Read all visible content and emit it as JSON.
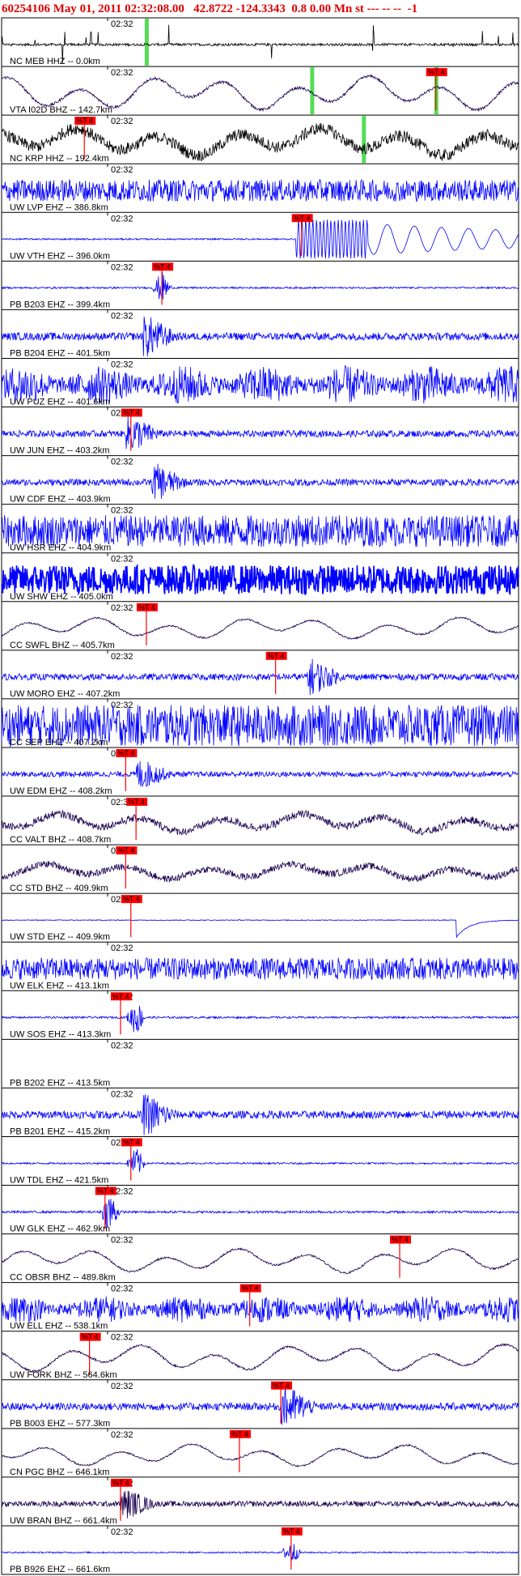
{
  "header": {
    "title": "60254106 May 01, 2011 02:32:08.00   42.8722 -124.3343  0.8 0.00 Mn st --- -- --  -1"
  },
  "time_tick": "02:32",
  "pick_label": "%T 4",
  "colors": {
    "header": "#e00000",
    "blue_trace": "#0000ff",
    "dark_trace": "#000000",
    "navy_trace": "#1a0050",
    "pick": "#ff0000",
    "green_marker": "#55dd55"
  },
  "traces": [
    {
      "label": "NC MEB HHZ -- 0.0km",
      "color": "dark",
      "style": "spiky",
      "amp": 0.35,
      "green": [
        0.28
      ]
    },
    {
      "label": "VTA I02D BHZ -- 142.7km",
      "color": "navy",
      "style": "wave",
      "amp": 0.7,
      "picks": [
        0.84
      ],
      "green": [
        0.6,
        0.84
      ]
    },
    {
      "label": "NC KRP HHZ -- 192.4km",
      "color": "dark",
      "style": "wave-noisy",
      "amp": 0.7,
      "picks": [
        0.16
      ],
      "green": [
        0.7
      ]
    },
    {
      "label": "UW LVP EHZ -- 386.8km",
      "color": "blue",
      "style": "noise",
      "amp": 0.45
    },
    {
      "label": "UW VTH EHZ -- 396.0km",
      "color": "blue",
      "style": "vth",
      "amp": 0.8,
      "picks": [
        0.58
      ]
    },
    {
      "label": "PB B203 EHZ -- 399.4km",
      "color": "blue",
      "style": "quiet-burst",
      "amp": 0.3,
      "picks": [
        0.31
      ]
    },
    {
      "label": "PB B204 EHZ -- 401.5km",
      "color": "blue",
      "style": "noise-burst",
      "amp": 0.35,
      "burst": 0.28
    },
    {
      "label": "UW PUZ EHZ -- 401.6km",
      "color": "blue",
      "style": "noise-loud",
      "amp": 0.8
    },
    {
      "label": "UW JUN EHZ -- 403.2km",
      "color": "blue",
      "style": "noise-burst",
      "amp": 0.3,
      "picks": [
        0.25
      ],
      "burst": 0.25
    },
    {
      "label": "UW CDF EHZ -- 403.9km",
      "color": "blue",
      "style": "noise-burst",
      "amp": 0.3,
      "burst": 0.3
    },
    {
      "label": "UW HSR EHZ -- 404.9km",
      "color": "blue",
      "style": "noise",
      "amp": 0.65
    },
    {
      "label": "UW SHW EHZ -- 405.0km",
      "color": "blue",
      "style": "block",
      "amp": 0.6
    },
    {
      "label": "CC SWFL BHZ -- 405.7km",
      "color": "navy",
      "style": "wave",
      "amp": 0.45,
      "picks": [
        0.28
      ]
    },
    {
      "label": "UW MORO EHZ -- 407.2km",
      "color": "blue",
      "style": "noise-burst",
      "amp": 0.3,
      "picks": [
        0.53
      ],
      "burst": 0.6
    },
    {
      "label": "CC SEP EHZ -- 407.2km",
      "color": "blue",
      "style": "noise",
      "amp": 0.85
    },
    {
      "label": "UW EDM EHZ -- 408.2km",
      "color": "blue",
      "style": "noise-burst",
      "amp": 0.25,
      "picks": [
        0.24
      ],
      "burst": 0.27
    },
    {
      "label": "CC VALT BHZ -- 408.7km",
      "color": "navy",
      "style": "wave-noisy",
      "amp": 0.45,
      "picks": [
        0.26
      ],
      "burst": 0.27
    },
    {
      "label": "CC STD BHZ -- 409.9km",
      "color": "navy",
      "style": "wave-noisy",
      "amp": 0.4,
      "picks": [
        0.24
      ],
      "burst": 0.27
    },
    {
      "label": "UW STD EHZ -- 409.9km",
      "color": "blue",
      "style": "flat-step",
      "amp": 0.5,
      "picks": [
        0.25
      ]
    },
    {
      "label": "UW ELK EHZ -- 413.1km",
      "color": "blue",
      "style": "noise",
      "amp": 0.45
    },
    {
      "label": "UW SOS EHZ -- 413.3km",
      "color": "blue",
      "style": "quiet-burst",
      "amp": 0.35,
      "picks": [
        0.23
      ],
      "burst": 0.26
    },
    {
      "label": "PB B202 EHZ -- 413.5km",
      "color": "blue",
      "style": "empty",
      "amp": 0
    },
    {
      "label": "PB B201 EHZ -- 415.2km",
      "color": "blue",
      "style": "noise-burst",
      "amp": 0.35,
      "burst": 0.28
    },
    {
      "label": "UW TDL EHZ -- 421.5km",
      "color": "blue",
      "style": "quiet-burst",
      "amp": 0.3,
      "picks": [
        0.25
      ],
      "burst": 0.26
    },
    {
      "label": "UW GLK EHZ -- 462.9km",
      "color": "blue",
      "style": "quiet-burst",
      "amp": 0.4,
      "picks": [
        0.2
      ],
      "burst": 0.21
    },
    {
      "label": "CC OBSR BHZ -- 489.8km",
      "color": "navy",
      "style": "wave",
      "amp": 0.5,
      "picks": [
        0.77
      ]
    },
    {
      "label": "UW ELL EHZ -- 538.1km",
      "color": "blue",
      "style": "noise-loud",
      "amp": 0.55,
      "picks": [
        0.48
      ]
    },
    {
      "label": "UW FORK BHZ -- 564.6km",
      "color": "navy",
      "style": "wave",
      "amp": 0.55,
      "picks": [
        0.17
      ]
    },
    {
      "label": "PB B003 EHZ -- 577.3km",
      "color": "blue",
      "style": "noise-burst",
      "amp": 0.35,
      "picks": [
        0.54
      ],
      "burst": 0.55
    },
    {
      "label": "CN PGC BHZ -- 646.1km",
      "color": "navy",
      "style": "wave",
      "amp": 0.45,
      "picks": [
        0.46
      ]
    },
    {
      "label": "UW BRAN BHZ -- 661.4km",
      "color": "navy",
      "style": "noise-burst",
      "amp": 0.25,
      "picks": [
        0.23
      ],
      "burst": 0.24
    },
    {
      "label": "PB B926 EHZ -- 661.6km",
      "color": "blue",
      "style": "quiet-burst",
      "amp": 0.25,
      "picks": [
        0.56
      ],
      "burst": 0.56
    }
  ]
}
